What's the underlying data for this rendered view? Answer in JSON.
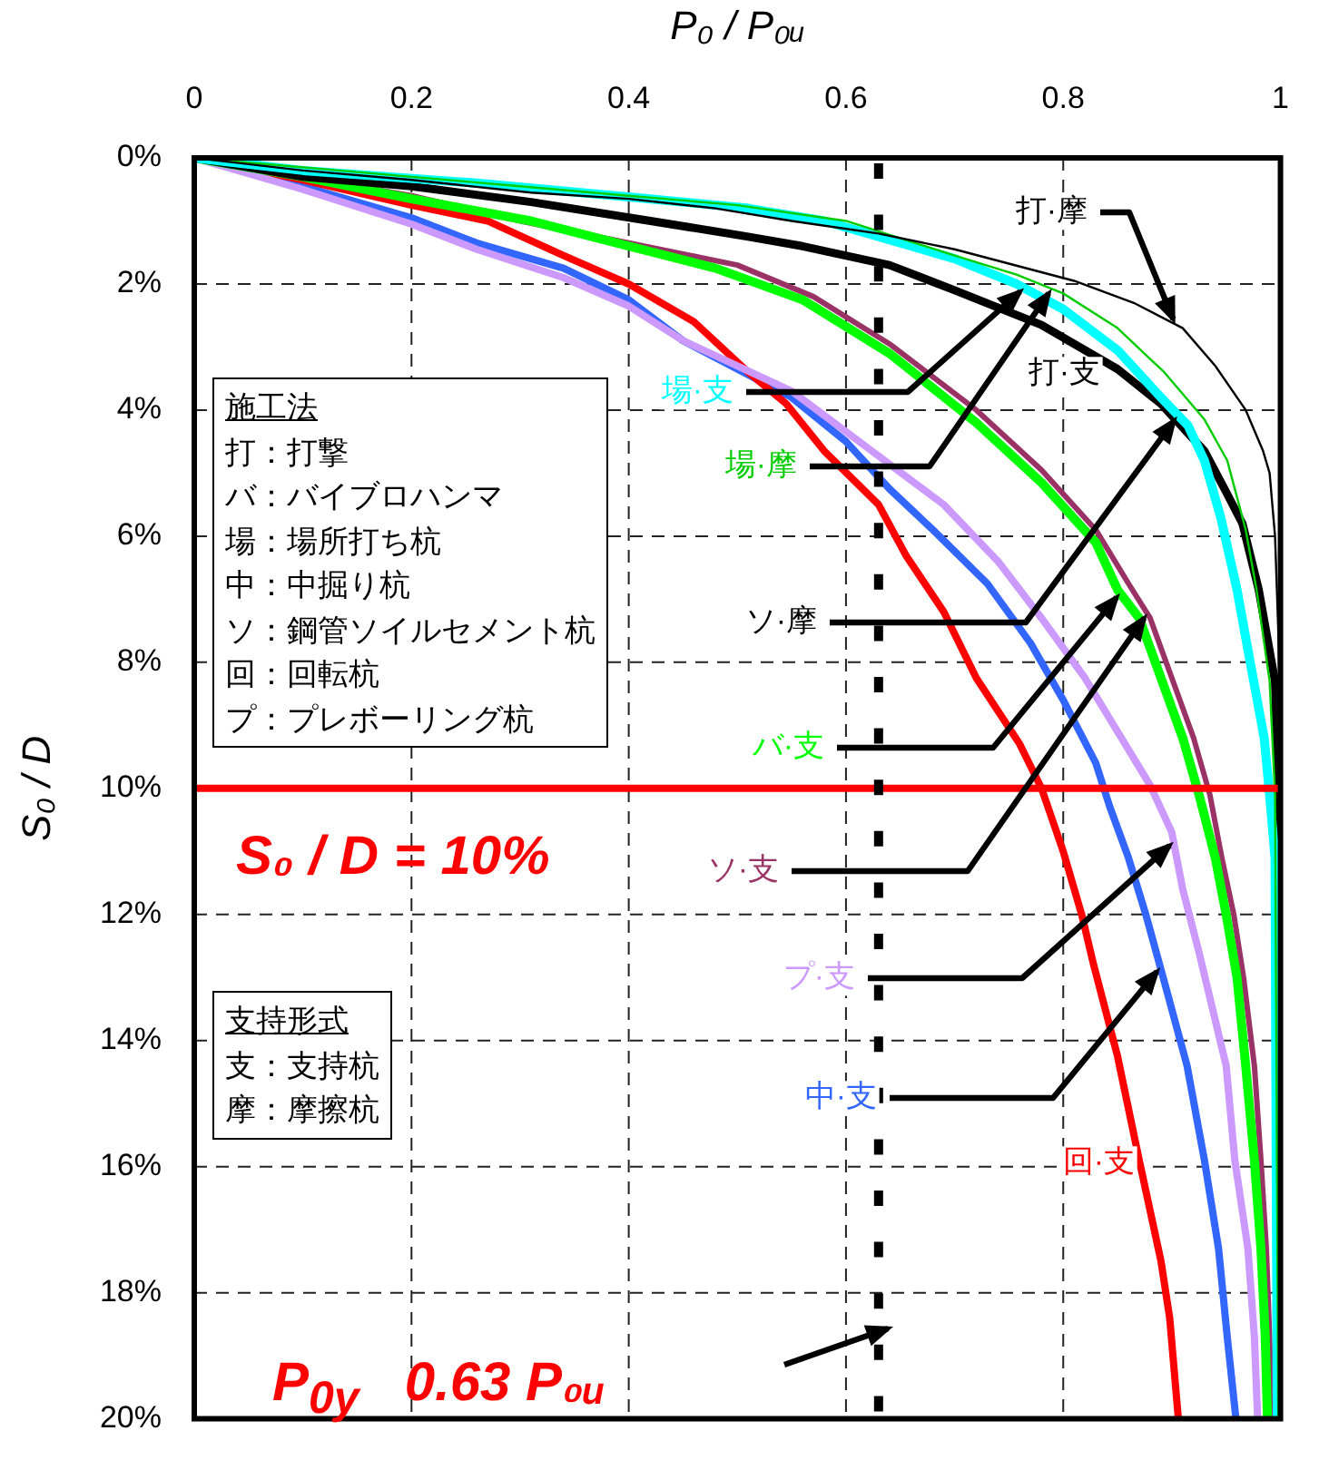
{
  "chart_data": {
    "type": "line",
    "xlabel": "P₀ / P₀ᵤ",
    "ylabel": "S₀ / D",
    "xlim": [
      0,
      1
    ],
    "xticks": [
      0,
      0.2,
      0.4,
      0.6,
      0.8,
      1
    ],
    "ylim": [
      20,
      0
    ],
    "yticks": [
      {
        "value": 0,
        "label": "0%"
      },
      {
        "value": 2,
        "label": "2%"
      },
      {
        "value": 4,
        "label": "4%"
      },
      {
        "value": 6,
        "label": "6%"
      },
      {
        "value": 8,
        "label": "8%"
      },
      {
        "value": 10,
        "label": "10%"
      },
      {
        "value": 12,
        "label": "12%"
      },
      {
        "value": 14,
        "label": "14%"
      },
      {
        "value": 16,
        "label": "16%"
      },
      {
        "value": 18,
        "label": "18%"
      },
      {
        "value": 20,
        "label": "20%"
      }
    ],
    "grid": true,
    "series": [
      {
        "name": "打·摩",
        "color": "#000000",
        "x": [
          0,
          0.1,
          0.2,
          0.31,
          0.4,
          0.48,
          0.55,
          0.63,
          0.7,
          0.81,
          0.865,
          0.91,
          0.94,
          0.968,
          0.984,
          0.99,
          0.995,
          0.998,
          1,
          1
        ],
        "values": [
          0,
          0.2,
          0.35,
          0.55,
          0.65,
          0.8,
          1.0,
          1.2,
          1.45,
          1.95,
          2.3,
          2.7,
          3.3,
          4.0,
          4.65,
          5.0,
          6.0,
          7.5,
          9.5,
          20
        ]
      },
      {
        "name": "場·支",
        "color": "#00ffff",
        "x": [
          0,
          0.1,
          0.26,
          0.42,
          0.51,
          0.58,
          0.7,
          0.757,
          0.8,
          0.85,
          0.89,
          0.915,
          0.93,
          0.945,
          0.96,
          0.97,
          0.985,
          0.99,
          0.995,
          0.997
        ],
        "values": [
          0,
          0.2,
          0.4,
          0.65,
          0.8,
          1.0,
          1.6,
          2.0,
          2.4,
          3.05,
          3.8,
          4.25,
          4.8,
          5.7,
          6.85,
          7.8,
          9.2,
          10.1,
          11.1,
          20
        ]
      },
      {
        "name": "場·摩",
        "color": "#00cc00",
        "x": [
          0,
          0.1,
          0.2,
          0.3,
          0.4,
          0.5,
          0.6,
          0.7,
          0.757,
          0.8,
          0.85,
          0.893,
          0.93,
          0.951,
          0.968,
          0.978,
          0.99,
          0.995,
          0.998
        ],
        "values": [
          0,
          0.15,
          0.3,
          0.45,
          0.6,
          0.75,
          1.0,
          1.55,
          1.85,
          2.15,
          2.7,
          3.4,
          4.15,
          4.8,
          5.9,
          6.85,
          8.3,
          10.1,
          20
        ]
      },
      {
        "name": "打·支",
        "color": "#000000",
        "x": [
          0,
          0.1,
          0.2,
          0.31,
          0.42,
          0.51,
          0.56,
          0.64,
          0.7,
          0.78,
          0.85,
          0.89,
          0.93,
          0.95,
          0.965,
          0.98,
          0.995,
          0.998,
          0.999,
          1
        ],
        "values": [
          0,
          0.3,
          0.45,
          0.7,
          1.0,
          1.25,
          1.4,
          1.7,
          2.1,
          2.65,
          3.35,
          3.9,
          4.65,
          5.3,
          5.8,
          6.85,
          8.3,
          10.1,
          15,
          20
        ]
      },
      {
        "name": "バ·支",
        "color": "#00ff00",
        "x": [
          0,
          0.1,
          0.2,
          0.31,
          0.4,
          0.48,
          0.56,
          0.64,
          0.72,
          0.78,
          0.83,
          0.85,
          0.87,
          0.89,
          0.91,
          0.925,
          0.94,
          0.95,
          0.96,
          0.968,
          0.976,
          0.982,
          0.986,
          0.988
        ],
        "values": [
          0,
          0.3,
          0.65,
          1.0,
          1.4,
          1.75,
          2.25,
          3.1,
          4.2,
          5.15,
          6.1,
          6.85,
          7.3,
          8.25,
          9.2,
          10.1,
          11.1,
          12.0,
          13.0,
          14.4,
          15.9,
          17.3,
          18.7,
          20
        ]
      },
      {
        "name": "ソ·支",
        "color": "#993366",
        "x": [
          0,
          0.1,
          0.2,
          0.3,
          0.4,
          0.5,
          0.57,
          0.64,
          0.72,
          0.78,
          0.83,
          0.86,
          0.88,
          0.9,
          0.92,
          0.935,
          0.946,
          0.957,
          0.966,
          0.976,
          0.982,
          0.987,
          0.99,
          0.992
        ],
        "values": [
          0,
          0.3,
          0.6,
          1.0,
          1.35,
          1.7,
          2.2,
          2.95,
          4.0,
          4.95,
          5.9,
          6.75,
          7.3,
          8.25,
          9.2,
          10.1,
          11.1,
          12.0,
          13.0,
          14.4,
          15.9,
          17.3,
          18.7,
          20
        ]
      },
      {
        "name": "プ·支",
        "color": "#cc99ff",
        "x": [
          0,
          0.1,
          0.2,
          0.26,
          0.34,
          0.4,
          0.45,
          0.55,
          0.62,
          0.69,
          0.74,
          0.78,
          0.82,
          0.85,
          0.88,
          0.9,
          0.91,
          0.925,
          0.95,
          0.958,
          0.97,
          0.976,
          0.979
        ],
        "values": [
          0,
          0.5,
          1.05,
          1.45,
          1.9,
          2.35,
          2.9,
          3.7,
          4.6,
          5.5,
          6.4,
          7.3,
          8.25,
          9.1,
          9.95,
          10.7,
          11.6,
          12.6,
          14.4,
          15.9,
          17.3,
          18.7,
          20
        ]
      },
      {
        "name": "中·支",
        "color": "#3366ff",
        "x": [
          0,
          0.1,
          0.2,
          0.26,
          0.34,
          0.4,
          0.45,
          0.55,
          0.6,
          0.64,
          0.68,
          0.73,
          0.77,
          0.8,
          0.83,
          0.843,
          0.86,
          0.876,
          0.892,
          0.914,
          0.93,
          0.943,
          0.951,
          0.959
        ],
        "values": [
          0,
          0.45,
          0.95,
          1.35,
          1.75,
          2.25,
          2.9,
          3.8,
          4.5,
          5.25,
          5.9,
          6.75,
          7.7,
          8.6,
          9.6,
          10.3,
          11.1,
          12.0,
          13.0,
          14.4,
          15.9,
          17.3,
          18.7,
          20
        ]
      },
      {
        "name": "回·支",
        "color": "#ff0000",
        "x": [
          0,
          0.1,
          0.2,
          0.27,
          0.34,
          0.4,
          0.46,
          0.51,
          0.545,
          0.58,
          0.63,
          0.655,
          0.69,
          0.72,
          0.76,
          0.78,
          0.8,
          0.817,
          0.828,
          0.85,
          0.87,
          0.89,
          0.898,
          0.906
        ],
        "values": [
          0,
          0.35,
          0.75,
          1.0,
          1.55,
          2.0,
          2.6,
          3.4,
          3.9,
          4.65,
          5.5,
          6.3,
          7.2,
          8.25,
          9.3,
          10.0,
          11.0,
          12.0,
          12.8,
          14.25,
          15.9,
          17.5,
          18.4,
          20
        ]
      }
    ],
    "ref_lines": [
      {
        "axis": "y",
        "value": 10,
        "label": "S₀ / D = 10%",
        "color": "#ff0000"
      },
      {
        "axis": "x",
        "value": 0.63,
        "color": "#000000",
        "line_style": "dashed"
      }
    ],
    "annotations": [
      "施工法",
      "打：打撃",
      "バ：バイブロハンマ",
      "場：場所打ち杭",
      "中：中掘り杭",
      "ソ：鋼管ソイルセメント杭",
      "回：回転杭",
      "プ：プレボーリング杭",
      "支持形式",
      "支：支持杭",
      "摩：摩擦杭",
      {
        "text": "ソ·摩",
        "x": 0.905,
        "y": 4.1
      },
      "P$_{0y}$   0.63 P₀ᵤ"
    ]
  }
}
